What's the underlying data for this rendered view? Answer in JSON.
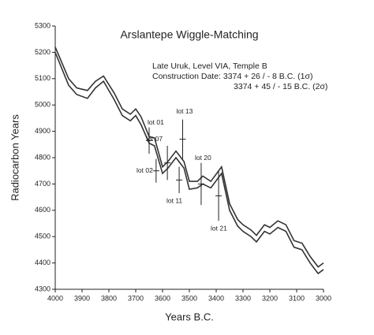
{
  "chart_data": {
    "type": "line",
    "title": "Arslantepe Wiggle-Matching",
    "xlabel": "Years B.C.",
    "ylabel": "Radiocarbon Years",
    "annotations": [
      "Late Uruk, Level VIA, Temple B",
      "Construction Date:  3374 + 26 / -   8 B.C. (1σ)",
      "3374 + 45 / - 15 B.C. (2σ)"
    ],
    "xlim": [
      4000,
      3000
    ],
    "xticks": [
      4000,
      3900,
      3800,
      3700,
      3600,
      3500,
      3400,
      3300,
      3200,
      3100,
      3000
    ],
    "ylim": [
      4300,
      5300
    ],
    "yticks": [
      4300,
      4400,
      4500,
      4600,
      4700,
      4800,
      4900,
      5000,
      5100,
      5200,
      5300
    ],
    "x": [
      4000,
      3950,
      3920,
      3880,
      3850,
      3820,
      3780,
      3750,
      3720,
      3700,
      3680,
      3650,
      3630,
      3600,
      3580,
      3550,
      3520,
      3500,
      3470,
      3450,
      3420,
      3380,
      3350,
      3320,
      3300,
      3270,
      3250,
      3220,
      3200,
      3170,
      3140,
      3110,
      3080,
      3050,
      3020,
      3000
    ],
    "series": [
      {
        "color": "#333333",
        "values": [
          5220,
          5100,
          5065,
          5055,
          5090,
          5110,
          5045,
          4985,
          4965,
          4985,
          4955,
          4880,
          4875,
          4765,
          4785,
          4825,
          4785,
          4710,
          4710,
          4730,
          4710,
          4765,
          4625,
          4565,
          4545,
          4525,
          4505,
          4545,
          4535,
          4560,
          4545,
          4485,
          4475,
          4425,
          4385,
          4400
        ]
      },
      {
        "color": "#333333",
        "values": [
          5200,
          5075,
          5040,
          5025,
          5065,
          5090,
          5020,
          4960,
          4940,
          4960,
          4925,
          4855,
          4845,
          4740,
          4760,
          4800,
          4760,
          4680,
          4685,
          4700,
          4685,
          4740,
          4600,
          4540,
          4520,
          4500,
          4480,
          4520,
          4510,
          4535,
          4520,
          4460,
          4450,
          4400,
          4360,
          4375
        ]
      }
    ],
    "points": [
      {
        "label": "lot 01",
        "x": 3650,
        "y": 4865,
        "error": 50
      },
      {
        "label": "lot 13",
        "x": 3525,
        "y": 4870,
        "error": 75
      },
      {
        "label": "lot 07",
        "x": 3582,
        "y": 4780,
        "error": 65
      },
      {
        "label": "lot 02",
        "x": 3624,
        "y": 4750,
        "error": 45
      },
      {
        "label": "lot 11",
        "x": 3538,
        "y": 4715,
        "error": 50
      },
      {
        "label": "lot 20",
        "x": 3456,
        "y": 4700,
        "error": 80
      },
      {
        "label": "lot 21",
        "x": 3391,
        "y": 4655,
        "error": 95
      }
    ]
  }
}
